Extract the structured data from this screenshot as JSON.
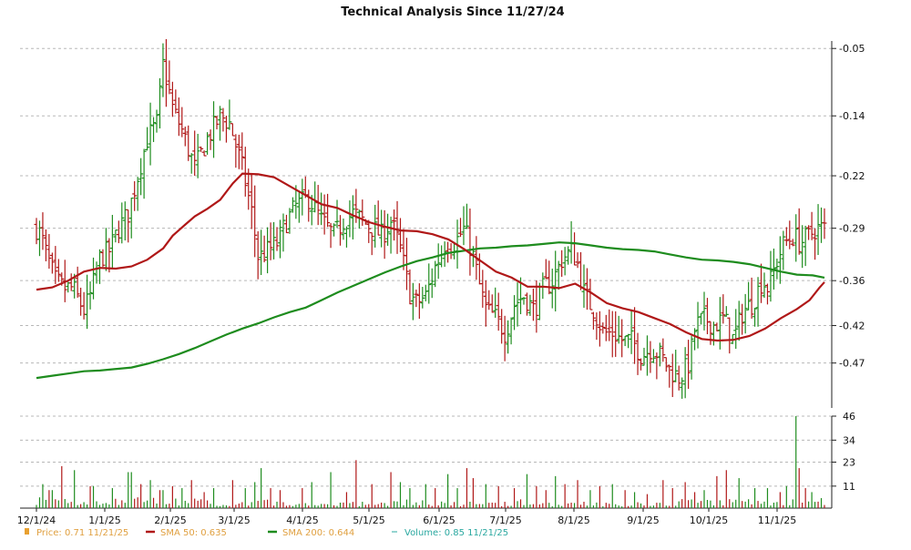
{
  "chart_data": {
    "type": "ohlc",
    "title": "Technical Analysis Since 11/27/24",
    "price_axis": {
      "ticks": [
        -0.05,
        -0.14,
        -0.22,
        -0.29,
        -0.36,
        -0.42,
        -0.47
      ],
      "ylim": [
        -0.53,
        -0.04
      ],
      "grid": true
    },
    "volume_axis": {
      "ticks": [
        46,
        34,
        23,
        11
      ],
      "ylim": [
        0,
        46
      ],
      "grid": true
    },
    "x_axis": {
      "labels": [
        "12/1/24",
        "1/1/25",
        "2/1/25",
        "3/1/25",
        "4/1/25",
        "5/1/25",
        "6/1/25",
        "7/1/25",
        "8/1/25",
        "9/1/25",
        "10/1/25",
        "11/1/25"
      ]
    },
    "legend": [
      {
        "key": "price",
        "label": "Price: 0.71  11/21/25",
        "color": "#e8a030"
      },
      {
        "key": "sma50",
        "label": "SMA 50: 0.635",
        "color": "#b01818"
      },
      {
        "key": "sma200",
        "label": "SMA 200: 0.644",
        "color": "#1e8c1e"
      },
      {
        "key": "volume",
        "label": "Volume: 0.85  11/21/25",
        "color": "#2aa8a0"
      }
    ],
    "colors": {
      "up": "#1e8c1e",
      "down": "#b01818",
      "grid": "#b8b8b8",
      "sma50": "#b01818",
      "sma200": "#1e8c1e"
    },
    "sma50_points": [
      [
        0,
        -0.372
      ],
      [
        0.5,
        -0.369
      ],
      [
        1,
        -0.36
      ],
      [
        1.5,
        -0.348
      ],
      [
        2,
        -0.343
      ],
      [
        2.5,
        -0.344
      ],
      [
        3,
        -0.341
      ],
      [
        3.5,
        -0.332
      ],
      [
        4,
        -0.317
      ],
      [
        4.3,
        -0.3
      ],
      [
        4.7,
        -0.285
      ],
      [
        5,
        -0.274
      ],
      [
        5.4,
        -0.264
      ],
      [
        5.8,
        -0.252
      ],
      [
        6.2,
        -0.23
      ],
      [
        6.5,
        -0.217
      ],
      [
        7,
        -0.218
      ],
      [
        7.5,
        -0.222
      ],
      [
        8,
        -0.234
      ],
      [
        8.5,
        -0.246
      ],
      [
        9,
        -0.258
      ],
      [
        9.5,
        -0.263
      ],
      [
        10,
        -0.273
      ],
      [
        10.5,
        -0.282
      ],
      [
        11,
        -0.288
      ],
      [
        11.5,
        -0.293
      ],
      [
        12,
        -0.294
      ],
      [
        12.5,
        -0.298
      ],
      [
        13,
        -0.305
      ],
      [
        13.5,
        -0.318
      ],
      [
        14,
        -0.333
      ],
      [
        14.5,
        -0.348
      ],
      [
        15,
        -0.356
      ],
      [
        15.5,
        -0.368
      ],
      [
        16,
        -0.368
      ],
      [
        16.5,
        -0.37
      ],
      [
        17,
        -0.364
      ],
      [
        17.5,
        -0.376
      ],
      [
        18,
        -0.39
      ],
      [
        18.5,
        -0.397
      ],
      [
        19,
        -0.402
      ],
      [
        19.5,
        -0.41
      ],
      [
        20,
        -0.418
      ],
      [
        20.5,
        -0.429
      ],
      [
        21,
        -0.438
      ],
      [
        21.5,
        -0.44
      ],
      [
        22,
        -0.439
      ],
      [
        22.5,
        -0.434
      ],
      [
        23,
        -0.424
      ],
      [
        23.5,
        -0.41
      ],
      [
        24,
        -0.398
      ],
      [
        24.4,
        -0.386
      ],
      [
        24.7,
        -0.37
      ],
      [
        24.87,
        -0.362
      ]
    ],
    "sma200_points": [
      [
        0,
        -0.49
      ],
      [
        0.5,
        -0.487
      ],
      [
        1,
        -0.484
      ],
      [
        1.5,
        -0.481
      ],
      [
        2,
        -0.48
      ],
      [
        3,
        -0.476
      ],
      [
        3.5,
        -0.471
      ],
      [
        4,
        -0.465
      ],
      [
        4.5,
        -0.458
      ],
      [
        5,
        -0.45
      ],
      [
        5.5,
        -0.441
      ],
      [
        6,
        -0.432
      ],
      [
        6.5,
        -0.424
      ],
      [
        7,
        -0.417
      ],
      [
        7.5,
        -0.409
      ],
      [
        8,
        -0.402
      ],
      [
        8.5,
        -0.396
      ],
      [
        9,
        -0.386
      ],
      [
        9.5,
        -0.376
      ],
      [
        10,
        -0.367
      ],
      [
        10.5,
        -0.358
      ],
      [
        11,
        -0.349
      ],
      [
        11.5,
        -0.341
      ],
      [
        12,
        -0.334
      ],
      [
        12.5,
        -0.329
      ],
      [
        13,
        -0.323
      ],
      [
        13.5,
        -0.32
      ],
      [
        14,
        -0.317
      ],
      [
        14.5,
        -0.316
      ],
      [
        15,
        -0.314
      ],
      [
        15.5,
        -0.313
      ],
      [
        16,
        -0.311
      ],
      [
        16.5,
        -0.309
      ],
      [
        17,
        -0.31
      ],
      [
        17.5,
        -0.313
      ],
      [
        18,
        -0.316
      ],
      [
        18.5,
        -0.318
      ],
      [
        19,
        -0.319
      ],
      [
        19.5,
        -0.321
      ],
      [
        20,
        -0.325
      ],
      [
        20.5,
        -0.329
      ],
      [
        21,
        -0.332
      ],
      [
        21.5,
        -0.333
      ],
      [
        22,
        -0.335
      ],
      [
        22.5,
        -0.338
      ],
      [
        23,
        -0.343
      ],
      [
        23.5,
        -0.348
      ],
      [
        24,
        -0.352
      ],
      [
        24.5,
        -0.353
      ],
      [
        24.87,
        -0.356
      ]
    ],
    "ohlc_anchors": [
      [
        0.0,
        -0.29
      ],
      [
        0.15,
        -0.3
      ],
      [
        0.35,
        -0.33
      ],
      [
        0.6,
        -0.36
      ],
      [
        0.85,
        -0.37
      ],
      [
        1.15,
        -0.37
      ],
      [
        1.5,
        -0.4
      ],
      [
        1.7,
        -0.38
      ],
      [
        2.0,
        -0.33
      ],
      [
        2.3,
        -0.32
      ],
      [
        2.6,
        -0.29
      ],
      [
        2.9,
        -0.27
      ],
      [
        3.2,
        -0.22
      ],
      [
        3.5,
        -0.17
      ],
      [
        3.8,
        -0.15
      ],
      [
        4.0,
        -0.07
      ],
      [
        4.3,
        -0.13
      ],
      [
        4.6,
        -0.16
      ],
      [
        5.0,
        -0.21
      ],
      [
        5.4,
        -0.17
      ],
      [
        5.8,
        -0.14
      ],
      [
        6.1,
        -0.15
      ],
      [
        6.5,
        -0.21
      ],
      [
        6.8,
        -0.27
      ],
      [
        7.0,
        -0.33
      ],
      [
        7.3,
        -0.32
      ],
      [
        7.6,
        -0.31
      ],
      [
        7.9,
        -0.28
      ],
      [
        8.2,
        -0.26
      ],
      [
        8.6,
        -0.25
      ],
      [
        9.0,
        -0.28
      ],
      [
        9.4,
        -0.3
      ],
      [
        9.7,
        -0.28
      ],
      [
        10.0,
        -0.27
      ],
      [
        10.3,
        -0.28
      ],
      [
        10.6,
        -0.29
      ],
      [
        10.9,
        -0.3
      ],
      [
        11.2,
        -0.28
      ],
      [
        11.5,
        -0.32
      ],
      [
        11.8,
        -0.38
      ],
      [
        12.0,
        -0.39
      ],
      [
        12.3,
        -0.38
      ],
      [
        12.6,
        -0.34
      ],
      [
        12.9,
        -0.31
      ],
      [
        13.2,
        -0.31
      ],
      [
        13.5,
        -0.29
      ],
      [
        13.8,
        -0.33
      ],
      [
        14.0,
        -0.37
      ],
      [
        14.2,
        -0.4
      ],
      [
        14.5,
        -0.41
      ],
      [
        14.8,
        -0.43
      ],
      [
        15.1,
        -0.39
      ],
      [
        15.4,
        -0.38
      ],
      [
        15.7,
        -0.4
      ],
      [
        16.0,
        -0.37
      ],
      [
        16.3,
        -0.36
      ],
      [
        16.6,
        -0.33
      ],
      [
        16.9,
        -0.32
      ],
      [
        17.1,
        -0.34
      ],
      [
        17.3,
        -0.38
      ],
      [
        17.6,
        -0.4
      ],
      [
        17.9,
        -0.43
      ],
      [
        18.2,
        -0.43
      ],
      [
        18.5,
        -0.44
      ],
      [
        18.8,
        -0.44
      ],
      [
        19.1,
        -0.46
      ],
      [
        19.4,
        -0.45
      ],
      [
        19.7,
        -0.46
      ],
      [
        20.0,
        -0.48
      ],
      [
        20.3,
        -0.49
      ],
      [
        20.6,
        -0.47
      ],
      [
        20.8,
        -0.42
      ],
      [
        21.1,
        -0.41
      ],
      [
        21.4,
        -0.42
      ],
      [
        21.7,
        -0.41
      ],
      [
        22.0,
        -0.44
      ],
      [
        22.3,
        -0.4
      ],
      [
        22.6,
        -0.39
      ],
      [
        22.9,
        -0.36
      ],
      [
        23.1,
        -0.37
      ],
      [
        23.4,
        -0.33
      ],
      [
        23.6,
        -0.31
      ],
      [
        23.9,
        -0.3
      ],
      [
        24.1,
        -0.31
      ],
      [
        24.4,
        -0.3
      ],
      [
        24.6,
        -0.29
      ],
      [
        24.87,
        -0.29
      ]
    ],
    "volume_anchors": [
      [
        0.0,
        4
      ],
      [
        0.8,
        3
      ],
      [
        1.6,
        2
      ],
      [
        2.5,
        3
      ],
      [
        3.3,
        4
      ],
      [
        4.1,
        3
      ],
      [
        5.0,
        3
      ],
      [
        5.8,
        2
      ],
      [
        6.6,
        3
      ],
      [
        7.4,
        3
      ],
      [
        8.2,
        2
      ],
      [
        9.0,
        2
      ],
      [
        9.8,
        2
      ],
      [
        10.6,
        2
      ],
      [
        11.4,
        3
      ],
      [
        12.2,
        3
      ],
      [
        13.0,
        2
      ],
      [
        13.8,
        2
      ],
      [
        14.6,
        2
      ],
      [
        15.4,
        3
      ],
      [
        16.2,
        2
      ],
      [
        17.0,
        2
      ],
      [
        17.8,
        2
      ],
      [
        18.6,
        2
      ],
      [
        19.4,
        2
      ],
      [
        20.2,
        3
      ],
      [
        21.0,
        3
      ],
      [
        21.8,
        3
      ],
      [
        22.6,
        3
      ],
      [
        23.4,
        3
      ],
      [
        24.2,
        3
      ],
      [
        24.87,
        2
      ]
    ],
    "volume_spikes": [
      [
        0.2,
        12
      ],
      [
        0.45,
        9
      ],
      [
        0.8,
        21
      ],
      [
        1.2,
        19
      ],
      [
        1.75,
        11
      ],
      [
        2.4,
        10
      ],
      [
        2.95,
        18
      ],
      [
        3.3,
        12
      ],
      [
        3.6,
        14
      ],
      [
        3.95,
        9
      ],
      [
        4.25,
        11
      ],
      [
        4.55,
        10
      ],
      [
        4.9,
        14
      ],
      [
        5.25,
        8
      ],
      [
        5.55,
        10
      ],
      [
        6.2,
        14
      ],
      [
        6.55,
        10
      ],
      [
        6.9,
        13
      ],
      [
        7.05,
        20
      ],
      [
        7.35,
        10
      ],
      [
        7.7,
        9
      ],
      [
        8.4,
        10
      ],
      [
        8.7,
        13
      ],
      [
        9.3,
        18
      ],
      [
        9.75,
        8
      ],
      [
        10.1,
        24
      ],
      [
        10.6,
        12
      ],
      [
        11.2,
        18
      ],
      [
        11.5,
        13
      ],
      [
        11.8,
        10
      ],
      [
        12.3,
        12
      ],
      [
        12.6,
        10
      ],
      [
        13.0,
        17
      ],
      [
        13.25,
        10
      ],
      [
        13.55,
        20
      ],
      [
        13.8,
        15
      ],
      [
        14.15,
        12
      ],
      [
        14.55,
        11
      ],
      [
        15.1,
        10
      ],
      [
        15.5,
        17
      ],
      [
        15.8,
        11
      ],
      [
        16.1,
        9
      ],
      [
        16.4,
        16
      ],
      [
        16.65,
        12
      ],
      [
        17.1,
        14
      ],
      [
        17.45,
        9
      ],
      [
        17.8,
        11
      ],
      [
        18.2,
        12
      ],
      [
        18.6,
        9
      ],
      [
        18.9,
        8
      ],
      [
        19.3,
        7
      ],
      [
        19.8,
        14
      ],
      [
        20.1,
        10
      ],
      [
        20.5,
        13
      ],
      [
        20.8,
        8
      ],
      [
        21.1,
        9
      ],
      [
        21.45,
        16
      ],
      [
        21.75,
        19
      ],
      [
        22.2,
        15
      ],
      [
        22.7,
        10
      ],
      [
        23.1,
        10
      ],
      [
        23.45,
        8
      ],
      [
        23.7,
        11
      ],
      [
        23.95,
        46
      ],
      [
        24.1,
        20
      ],
      [
        24.25,
        10
      ],
      [
        24.45,
        8
      ],
      [
        24.8,
        5
      ]
    ],
    "series_count_hint": 250
  }
}
